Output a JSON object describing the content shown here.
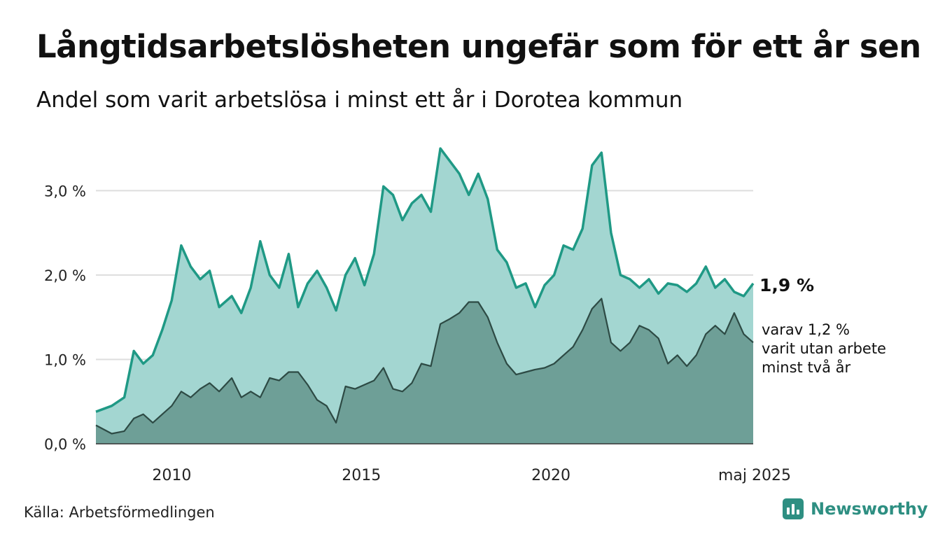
{
  "header": {
    "title": "Långtidsarbetslösheten ungefär som för ett år sen",
    "subtitle": "Andel som varit arbetslösa i minst ett år i Dorotea kommun"
  },
  "footer": {
    "source": "Källa: Arbetsförmedlingen",
    "brand": "Newsworthy"
  },
  "colors": {
    "series1_line": "#1f9985",
    "series1_fill": "#a3d6d1",
    "series2_line": "#2d4a44",
    "series2_fill": "#6e9f97",
    "grid": "#dddddd"
  },
  "chart_data": {
    "type": "area",
    "title": "Långtidsarbetslösheten ungefär som för ett år sen",
    "subtitle": "Andel som varit arbetslösa i minst ett år i Dorotea kommun",
    "y_unit": "%",
    "ylim": [
      0,
      3.6
    ],
    "xlim": [
      "2008-01",
      "2025-05"
    ],
    "y_ticks": [
      {
        "value": 0,
        "label": "0,0 %"
      },
      {
        "value": 1,
        "label": "1,0 %"
      },
      {
        "value": 2,
        "label": "2,0 %"
      },
      {
        "value": 3,
        "label": "3,0 %"
      }
    ],
    "x_ticks": [
      {
        "value": "2010-01",
        "label": "2010"
      },
      {
        "value": "2015-01",
        "label": "2015"
      },
      {
        "value": "2020-01",
        "label": "2020"
      },
      {
        "value": "2025-05",
        "label": "maj 2025"
      }
    ],
    "grid": true,
    "end_labels": {
      "series1": "1,9 %",
      "series2_lines": [
        "varav 1,2 %",
        "varit utan arbete",
        "minst två år"
      ]
    },
    "series": [
      {
        "points": [
          [
            "2008-01",
            0.38
          ],
          [
            "2008-06",
            0.45
          ],
          [
            "2008-10",
            0.55
          ],
          [
            "2009-01",
            1.1
          ],
          [
            "2009-04",
            0.95
          ],
          [
            "2009-07",
            1.05
          ],
          [
            "2009-10",
            1.35
          ],
          [
            "2010-01",
            1.7
          ],
          [
            "2010-04",
            2.35
          ],
          [
            "2010-07",
            2.1
          ],
          [
            "2010-10",
            1.95
          ],
          [
            "2011-01",
            2.05
          ],
          [
            "2011-04",
            1.62
          ],
          [
            "2011-08",
            1.75
          ],
          [
            "2011-11",
            1.55
          ],
          [
            "2012-02",
            1.85
          ],
          [
            "2012-05",
            2.4
          ],
          [
            "2012-08",
            2.0
          ],
          [
            "2012-11",
            1.85
          ],
          [
            "2013-02",
            2.25
          ],
          [
            "2013-05",
            1.62
          ],
          [
            "2013-08",
            1.9
          ],
          [
            "2013-11",
            2.05
          ],
          [
            "2014-02",
            1.85
          ],
          [
            "2014-05",
            1.58
          ],
          [
            "2014-08",
            2.0
          ],
          [
            "2014-11",
            2.2
          ],
          [
            "2015-02",
            1.88
          ],
          [
            "2015-05",
            2.25
          ],
          [
            "2015-08",
            3.05
          ],
          [
            "2015-11",
            2.95
          ],
          [
            "2016-02",
            2.65
          ],
          [
            "2016-05",
            2.85
          ],
          [
            "2016-08",
            2.95
          ],
          [
            "2016-11",
            2.75
          ],
          [
            "2017-02",
            3.5
          ],
          [
            "2017-05",
            3.35
          ],
          [
            "2017-08",
            3.2
          ],
          [
            "2017-11",
            2.95
          ],
          [
            "2018-02",
            3.2
          ],
          [
            "2018-05",
            2.9
          ],
          [
            "2018-08",
            2.3
          ],
          [
            "2018-11",
            2.15
          ],
          [
            "2019-02",
            1.85
          ],
          [
            "2019-05",
            1.9
          ],
          [
            "2019-08",
            1.62
          ],
          [
            "2019-11",
            1.88
          ],
          [
            "2020-02",
            2.0
          ],
          [
            "2020-05",
            2.35
          ],
          [
            "2020-08",
            2.3
          ],
          [
            "2020-11",
            2.55
          ],
          [
            "2021-02",
            3.3
          ],
          [
            "2021-05",
            3.45
          ],
          [
            "2021-08",
            2.5
          ],
          [
            "2021-11",
            2.0
          ],
          [
            "2022-02",
            1.95
          ],
          [
            "2022-05",
            1.85
          ],
          [
            "2022-08",
            1.95
          ],
          [
            "2022-11",
            1.78
          ],
          [
            "2023-02",
            1.9
          ],
          [
            "2023-05",
            1.88
          ],
          [
            "2023-08",
            1.8
          ],
          [
            "2023-11",
            1.9
          ],
          [
            "2024-02",
            2.1
          ],
          [
            "2024-05",
            1.85
          ],
          [
            "2024-08",
            1.95
          ],
          [
            "2024-11",
            1.8
          ],
          [
            "2025-02",
            1.75
          ],
          [
            "2025-05",
            1.9
          ]
        ]
      },
      {
        "points": [
          [
            "2008-01",
            0.22
          ],
          [
            "2008-06",
            0.12
          ],
          [
            "2008-10",
            0.15
          ],
          [
            "2009-01",
            0.3
          ],
          [
            "2009-04",
            0.35
          ],
          [
            "2009-07",
            0.25
          ],
          [
            "2009-10",
            0.35
          ],
          [
            "2010-01",
            0.45
          ],
          [
            "2010-04",
            0.62
          ],
          [
            "2010-07",
            0.55
          ],
          [
            "2010-10",
            0.65
          ],
          [
            "2011-01",
            0.72
          ],
          [
            "2011-04",
            0.62
          ],
          [
            "2011-08",
            0.78
          ],
          [
            "2011-11",
            0.55
          ],
          [
            "2012-02",
            0.62
          ],
          [
            "2012-05",
            0.55
          ],
          [
            "2012-08",
            0.78
          ],
          [
            "2012-11",
            0.75
          ],
          [
            "2013-02",
            0.85
          ],
          [
            "2013-05",
            0.85
          ],
          [
            "2013-08",
            0.7
          ],
          [
            "2013-11",
            0.52
          ],
          [
            "2014-02",
            0.45
          ],
          [
            "2014-05",
            0.25
          ],
          [
            "2014-08",
            0.68
          ],
          [
            "2014-11",
            0.65
          ],
          [
            "2015-02",
            0.7
          ],
          [
            "2015-05",
            0.75
          ],
          [
            "2015-08",
            0.9
          ],
          [
            "2015-11",
            0.65
          ],
          [
            "2016-02",
            0.62
          ],
          [
            "2016-05",
            0.72
          ],
          [
            "2016-08",
            0.95
          ],
          [
            "2016-11",
            0.92
          ],
          [
            "2017-02",
            1.42
          ],
          [
            "2017-05",
            1.48
          ],
          [
            "2017-08",
            1.55
          ],
          [
            "2017-11",
            1.68
          ],
          [
            "2018-02",
            1.68
          ],
          [
            "2018-05",
            1.5
          ],
          [
            "2018-08",
            1.2
          ],
          [
            "2018-11",
            0.95
          ],
          [
            "2019-02",
            0.82
          ],
          [
            "2019-05",
            0.85
          ],
          [
            "2019-08",
            0.88
          ],
          [
            "2019-11",
            0.9
          ],
          [
            "2020-02",
            0.95
          ],
          [
            "2020-05",
            1.05
          ],
          [
            "2020-08",
            1.15
          ],
          [
            "2020-11",
            1.35
          ],
          [
            "2021-02",
            1.6
          ],
          [
            "2021-05",
            1.72
          ],
          [
            "2021-08",
            1.2
          ],
          [
            "2021-11",
            1.1
          ],
          [
            "2022-02",
            1.2
          ],
          [
            "2022-05",
            1.4
          ],
          [
            "2022-08",
            1.35
          ],
          [
            "2022-11",
            1.25
          ],
          [
            "2023-02",
            0.95
          ],
          [
            "2023-05",
            1.05
          ],
          [
            "2023-08",
            0.92
          ],
          [
            "2023-11",
            1.05
          ],
          [
            "2024-02",
            1.3
          ],
          [
            "2024-05",
            1.4
          ],
          [
            "2024-08",
            1.3
          ],
          [
            "2024-11",
            1.55
          ],
          [
            "2025-02",
            1.3
          ],
          [
            "2025-05",
            1.2
          ]
        ]
      }
    ]
  }
}
